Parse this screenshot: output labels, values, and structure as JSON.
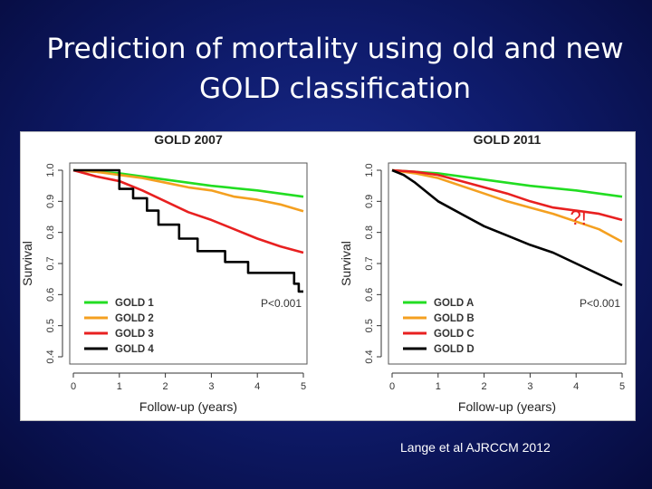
{
  "slide": {
    "title_line1": "Prediction of mortality using old and new",
    "title_line2": "GOLD classification",
    "citation": "Lange et al AJRCCM 2012"
  },
  "chart_data": [
    {
      "type": "line",
      "title": "GOLD 2007",
      "xlabel": "Follow-up (years)",
      "ylabel": "Survival",
      "xlim": [
        0,
        5
      ],
      "ylim": [
        0.4,
        1.0
      ],
      "xticks": [
        0,
        1,
        2,
        3,
        4,
        5
      ],
      "yticks": [
        0.4,
        0.5,
        0.6,
        0.7,
        0.8,
        0.9,
        1.0
      ],
      "legend_position": "bottom-left",
      "annotation": "P<0.001",
      "series": [
        {
          "name": "GOLD 1",
          "color": "#22dd22",
          "step": false,
          "x": [
            0,
            1,
            2,
            3,
            4,
            5
          ],
          "y": [
            1.0,
            0.99,
            0.97,
            0.95,
            0.935,
            0.915
          ]
        },
        {
          "name": "GOLD 2",
          "color": "#f4a020",
          "step": false,
          "x": [
            0,
            0.5,
            1,
            1.5,
            2,
            2.5,
            3,
            3.5,
            4,
            4.5,
            5
          ],
          "y": [
            1.0,
            0.995,
            0.985,
            0.975,
            0.96,
            0.945,
            0.935,
            0.915,
            0.905,
            0.89,
            0.868
          ]
        },
        {
          "name": "GOLD 3",
          "color": "#e82020",
          "step": false,
          "x": [
            0,
            0.5,
            1,
            1.5,
            2,
            2.5,
            3,
            3.5,
            4,
            4.5,
            5
          ],
          "y": [
            1.0,
            0.98,
            0.965,
            0.935,
            0.9,
            0.865,
            0.84,
            0.81,
            0.78,
            0.755,
            0.735
          ]
        },
        {
          "name": "GOLD 4",
          "color": "#000000",
          "step": true,
          "x": [
            0,
            0.95,
            1.0,
            1.3,
            1.6,
            1.85,
            2.3,
            2.7,
            3.3,
            3.8,
            4.8,
            4.9,
            5.0
          ],
          "y": [
            1.0,
            1.0,
            0.94,
            0.91,
            0.87,
            0.825,
            0.78,
            0.74,
            0.705,
            0.67,
            0.635,
            0.61,
            0.61
          ]
        }
      ]
    },
    {
      "type": "line",
      "title": "GOLD 2011",
      "xlabel": "Follow-up (years)",
      "ylabel": "Survival",
      "xlim": [
        0,
        5
      ],
      "ylim": [
        0.4,
        1.0
      ],
      "xticks": [
        0,
        1,
        2,
        3,
        4,
        5
      ],
      "yticks": [
        0.4,
        0.5,
        0.6,
        0.7,
        0.8,
        0.9,
        1.0
      ],
      "legend_position": "bottom-left",
      "annotation": "P<0.001",
      "callout": "?!",
      "series": [
        {
          "name": "GOLD A",
          "color": "#22dd22",
          "step": false,
          "x": [
            0,
            1,
            2,
            3,
            4,
            5
          ],
          "y": [
            1.0,
            0.99,
            0.97,
            0.95,
            0.935,
            0.915
          ]
        },
        {
          "name": "GOLD B",
          "color": "#f4a020",
          "step": false,
          "x": [
            0,
            0.5,
            1,
            1.5,
            2,
            2.5,
            3,
            3.5,
            4,
            4.5,
            5
          ],
          "y": [
            1.0,
            0.99,
            0.975,
            0.95,
            0.925,
            0.9,
            0.88,
            0.86,
            0.835,
            0.81,
            0.77
          ]
        },
        {
          "name": "GOLD C",
          "color": "#e82020",
          "step": false,
          "x": [
            0,
            0.5,
            1,
            1.5,
            2,
            2.5,
            3,
            3.5,
            4,
            4.5,
            5
          ],
          "y": [
            1.0,
            0.995,
            0.985,
            0.965,
            0.945,
            0.925,
            0.9,
            0.88,
            0.87,
            0.86,
            0.84
          ]
        },
        {
          "name": "GOLD D",
          "color": "#000000",
          "step": false,
          "x": [
            0,
            0.25,
            0.5,
            0.75,
            1,
            1.5,
            2,
            2.5,
            3,
            3.5,
            4,
            4.5,
            5
          ],
          "y": [
            1.0,
            0.985,
            0.96,
            0.93,
            0.9,
            0.86,
            0.82,
            0.79,
            0.76,
            0.735,
            0.7,
            0.665,
            0.63
          ]
        }
      ]
    }
  ]
}
